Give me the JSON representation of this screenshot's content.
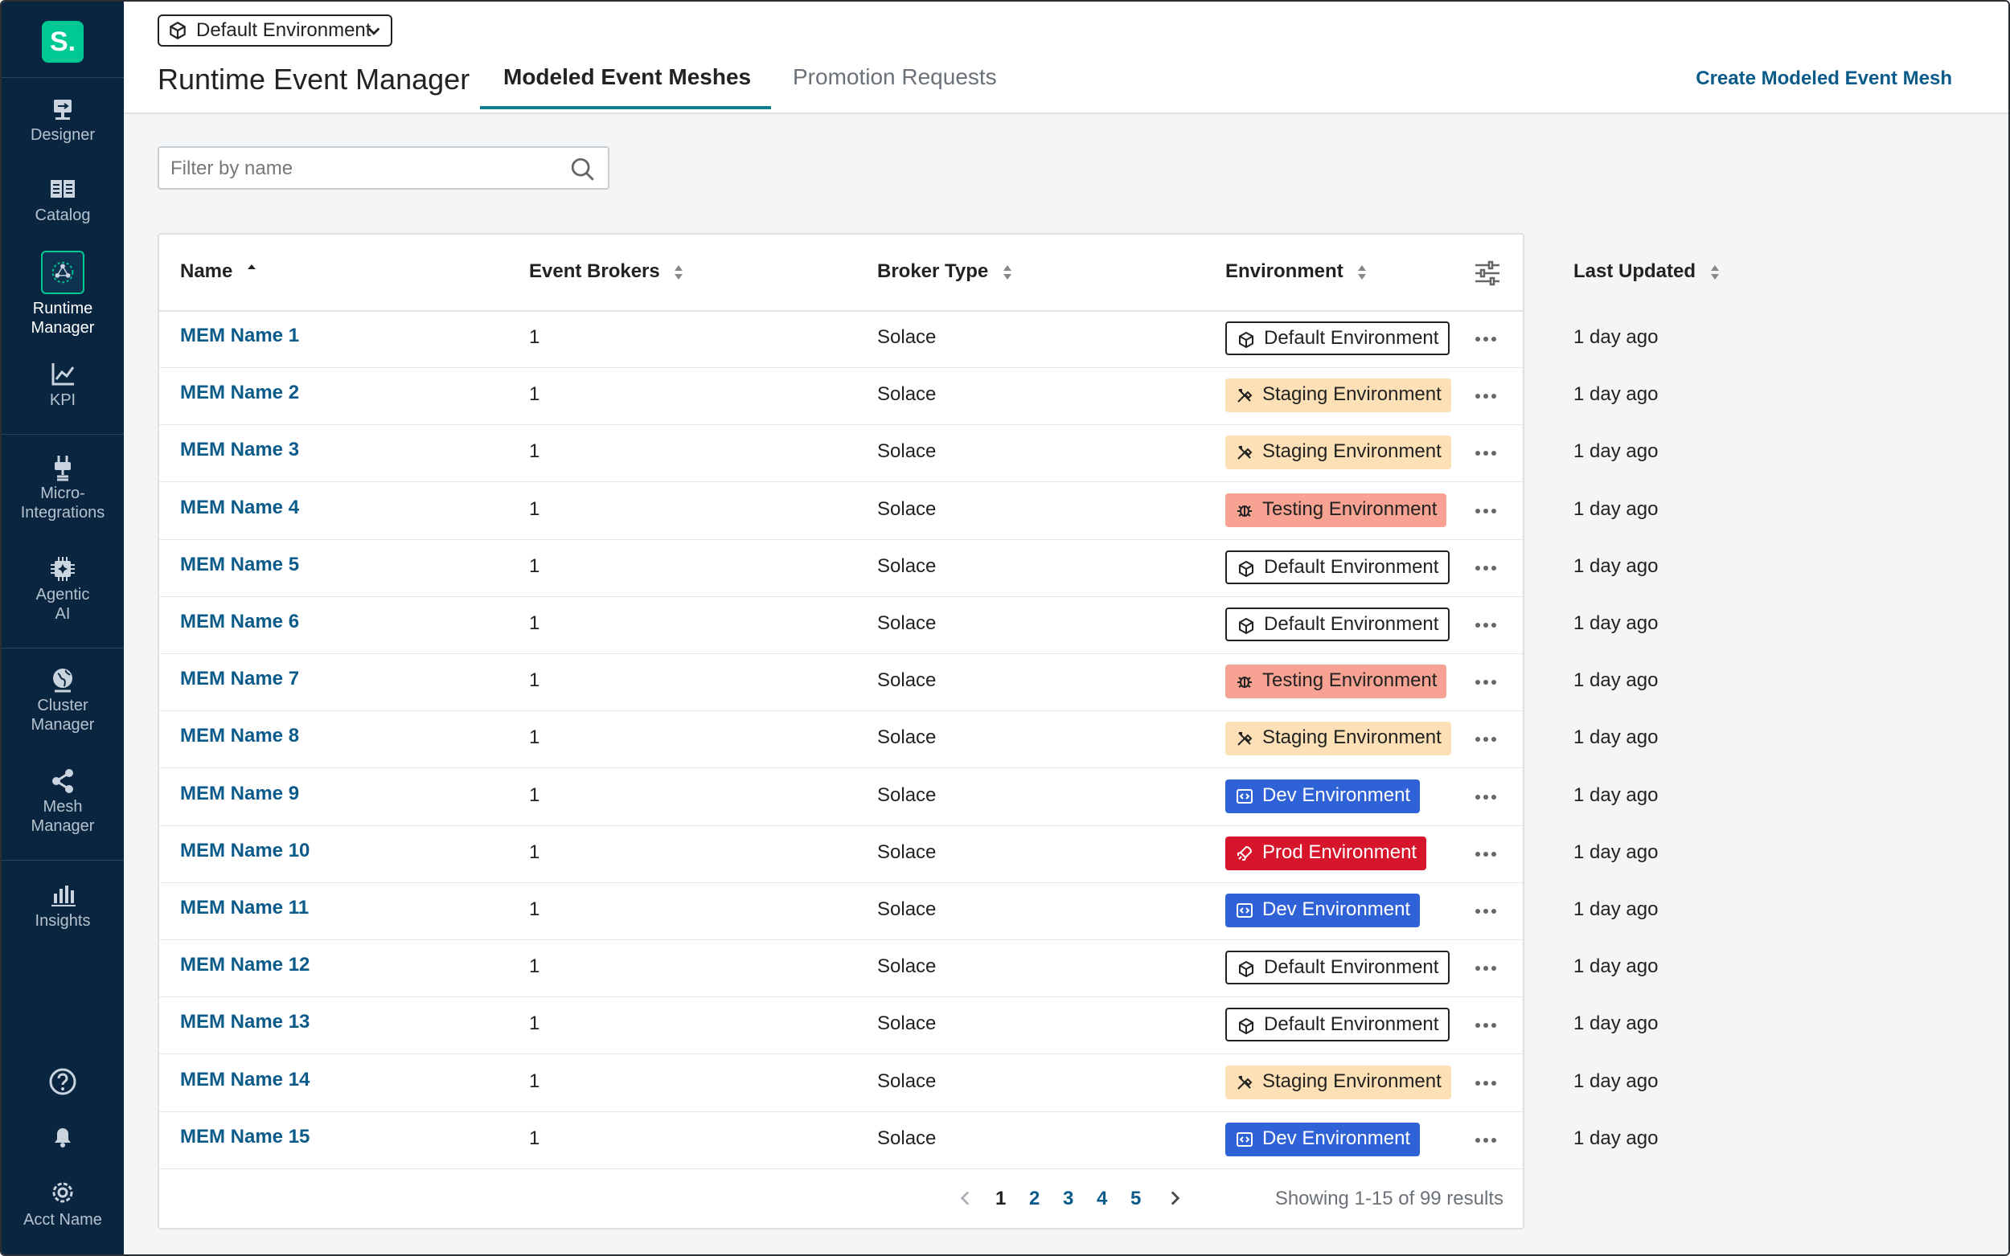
{
  "sidebar": {
    "logo_text": "S.",
    "items": [
      {
        "label": "Designer",
        "icon": "designer-icon"
      },
      {
        "label": "Catalog",
        "icon": "catalog-icon"
      },
      {
        "label": "Runtime Manager",
        "icon": "runtime-manager-icon",
        "active": true
      },
      {
        "label": "KPI",
        "icon": "kpi-icon"
      },
      {
        "label": "Micro-Integrations",
        "icon": "plug-icon"
      },
      {
        "label": "Agentic AI",
        "icon": "chip-icon"
      },
      {
        "label": "Cluster Manager",
        "icon": "globe-icon"
      },
      {
        "label": "Mesh Manager",
        "icon": "mesh-icon"
      },
      {
        "label": "Insights",
        "icon": "bar-chart-icon"
      }
    ],
    "bottom": {
      "help_icon": "help-icon",
      "bell_icon": "bell-icon",
      "settings_icon": "gear-icon",
      "account_label": "Acct Name"
    }
  },
  "header": {
    "environment_select": "Default Environment",
    "title": "Runtime Event Manager",
    "tabs": [
      {
        "label": "Modeled Event Meshes",
        "active": true
      },
      {
        "label": "Promotion Requests",
        "active": false
      }
    ],
    "create_link": "Create Modeled Event Mesh"
  },
  "filter": {
    "placeholder": "Filter by name",
    "value": ""
  },
  "table": {
    "columns": [
      "Name",
      "Event Brokers",
      "Broker Type",
      "Environment",
      "Last Updated"
    ],
    "rows": [
      {
        "name": "MEM Name 1",
        "brokers": "1",
        "type": "Solace",
        "env": "Default Environment",
        "env_kind": "default",
        "updated": "1 day ago"
      },
      {
        "name": "MEM Name 2",
        "brokers": "1",
        "type": "Solace",
        "env": "Staging Environment",
        "env_kind": "staging",
        "updated": "1 day ago"
      },
      {
        "name": "MEM Name 3",
        "brokers": "1",
        "type": "Solace",
        "env": "Staging Environment",
        "env_kind": "staging",
        "updated": "1 day ago"
      },
      {
        "name": "MEM Name 4",
        "brokers": "1",
        "type": "Solace",
        "env": "Testing Environment",
        "env_kind": "testing",
        "updated": "1 day ago"
      },
      {
        "name": "MEM Name 5",
        "brokers": "1",
        "type": "Solace",
        "env": "Default Environment",
        "env_kind": "default",
        "updated": "1 day ago"
      },
      {
        "name": "MEM Name 6",
        "brokers": "1",
        "type": "Solace",
        "env": "Default Environment",
        "env_kind": "default",
        "updated": "1 day ago"
      },
      {
        "name": "MEM Name 7",
        "brokers": "1",
        "type": "Solace",
        "env": "Testing Environment",
        "env_kind": "testing",
        "updated": "1 day ago"
      },
      {
        "name": "MEM Name 8",
        "brokers": "1",
        "type": "Solace",
        "env": "Staging Environment",
        "env_kind": "staging",
        "updated": "1 day ago"
      },
      {
        "name": "MEM Name 9",
        "brokers": "1",
        "type": "Solace",
        "env": "Dev Environment",
        "env_kind": "dev",
        "updated": "1 day ago"
      },
      {
        "name": "MEM Name 10",
        "brokers": "1",
        "type": "Solace",
        "env": "Prod Environment",
        "env_kind": "prod",
        "updated": "1 day ago"
      },
      {
        "name": "MEM Name 11",
        "brokers": "1",
        "type": "Solace",
        "env": "Dev Environment",
        "env_kind": "dev",
        "updated": "1 day ago"
      },
      {
        "name": "MEM Name 12",
        "brokers": "1",
        "type": "Solace",
        "env": "Default Environment",
        "env_kind": "default",
        "updated": "1 day ago"
      },
      {
        "name": "MEM Name 13",
        "brokers": "1",
        "type": "Solace",
        "env": "Default Environment",
        "env_kind": "default",
        "updated": "1 day ago"
      },
      {
        "name": "MEM Name 14",
        "brokers": "1",
        "type": "Solace",
        "env": "Staging Environment",
        "env_kind": "staging",
        "updated": "1 day ago"
      },
      {
        "name": "MEM Name 15",
        "brokers": "1",
        "type": "Solace",
        "env": "Dev Environment",
        "env_kind": "dev",
        "updated": "1 day ago"
      }
    ]
  },
  "pagination": {
    "pages": [
      "1",
      "2",
      "3",
      "4",
      "5"
    ],
    "current": "1",
    "summary": "Showing 1-15 of 99 results"
  },
  "colors": {
    "sidebar_bg": "#092540",
    "accent": "#00c895",
    "link": "#0a5a8a",
    "staging": "#fde0b5",
    "testing": "#f7a293",
    "dev": "#2f62d6",
    "prod": "#d6152b"
  }
}
